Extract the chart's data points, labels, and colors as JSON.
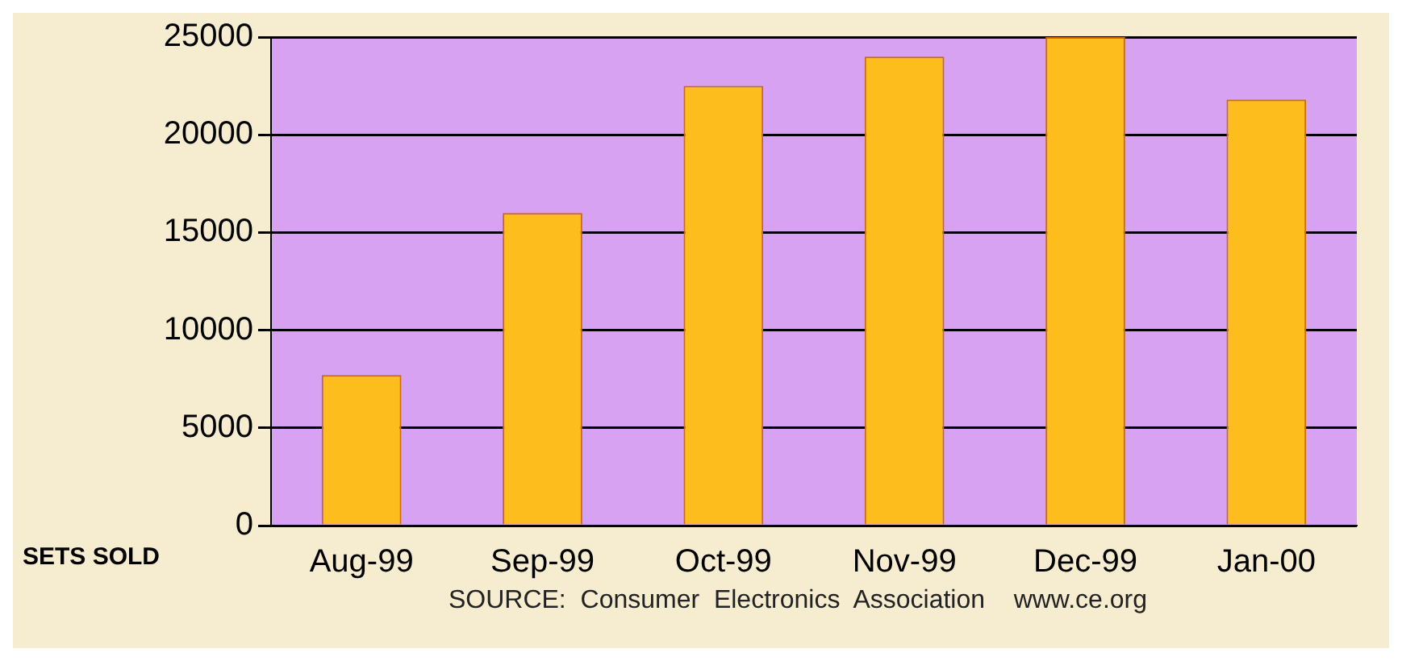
{
  "chart_data": {
    "type": "bar",
    "xlabel": "SETS SOLD",
    "categories": [
      "Aug-99",
      "Sep-99",
      "Oct-99",
      "Nov-99",
      "Dec-99",
      "Jan-00"
    ],
    "values": [
      7700,
      16000,
      22500,
      24000,
      25000,
      21800
    ],
    "color": "#fdbd1c",
    "ylim": [
      0,
      25000
    ],
    "yticks": [
      0,
      5000,
      10000,
      15000,
      20000,
      25000
    ],
    "grid": "y",
    "annotations": [
      "SOURCE:  Consumer  Electronics  Association    www.ce.org"
    ]
  }
}
